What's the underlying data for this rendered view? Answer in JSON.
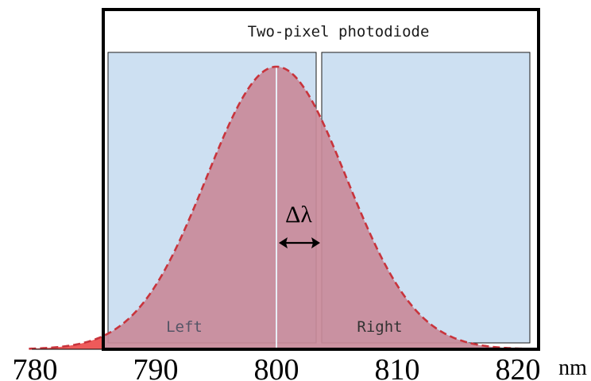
{
  "title": "Two-pixel photodiode",
  "pixels": {
    "left_label": "Left",
    "right_label": "Right",
    "fill": "#cde0f2",
    "stroke": "#1a1a1a"
  },
  "delta_label": "Δλ",
  "axis": {
    "unit": "nm",
    "ticks": [
      "780",
      "790",
      "800",
      "810",
      "820"
    ]
  },
  "curve": {
    "center_nm": 800,
    "sigma_nm": 5.8,
    "fill": "#c98a9a",
    "overflow_fill": "#ee5a5a",
    "dash_color": "#c8343c"
  },
  "colors": {
    "frame": "#000000",
    "center_line": "#e8eef6"
  }
}
